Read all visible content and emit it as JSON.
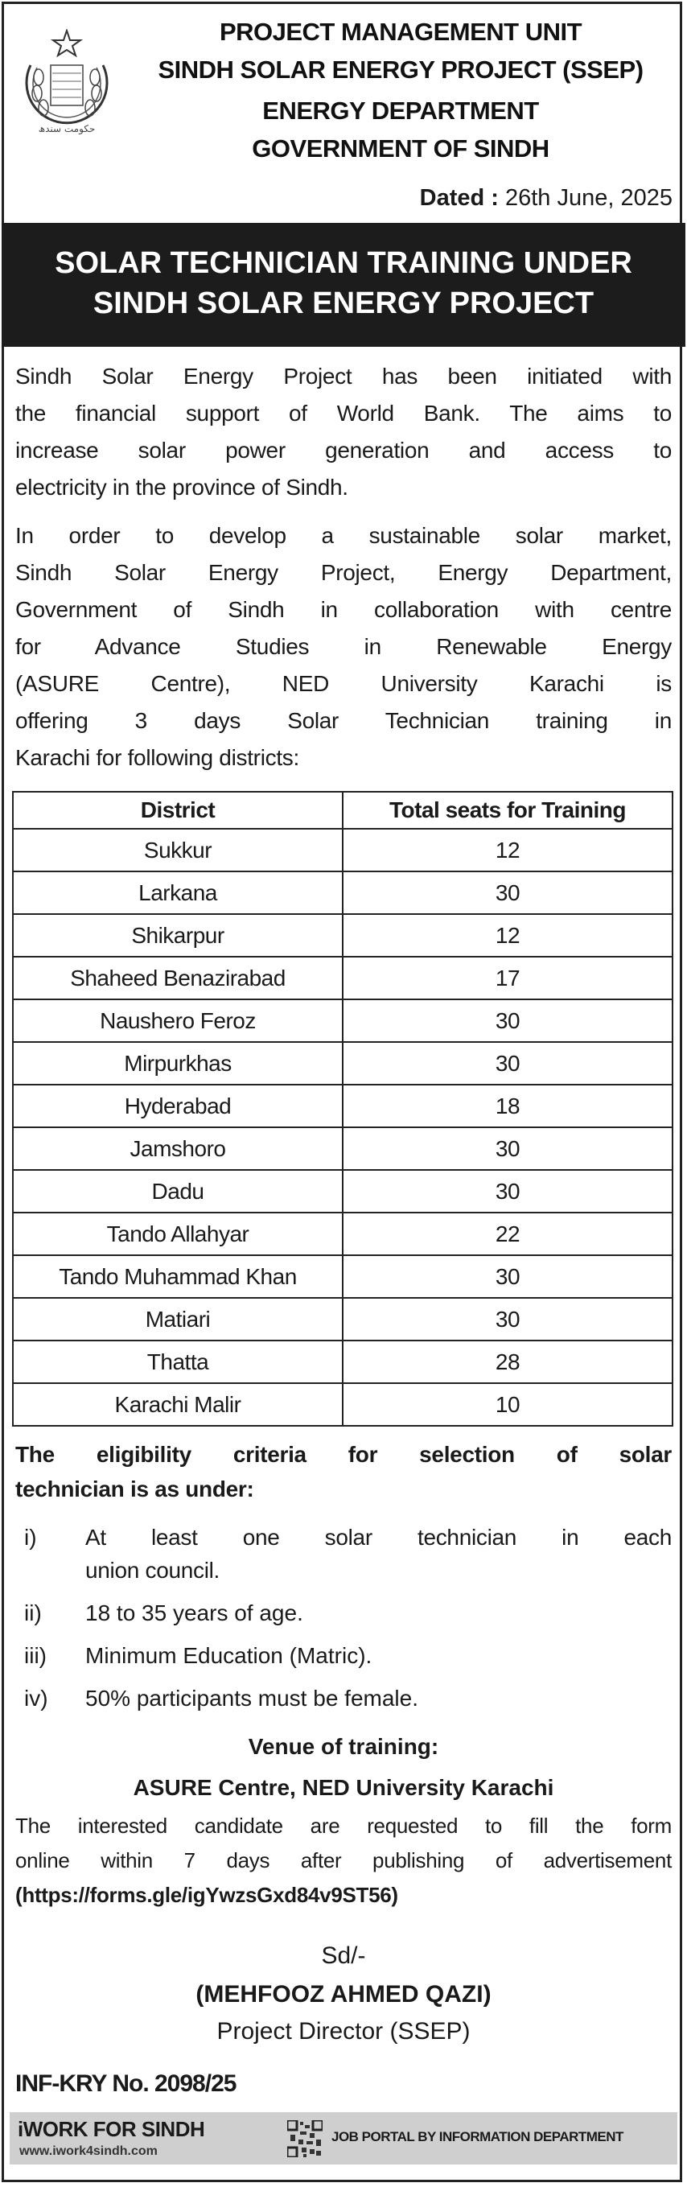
{
  "header": {
    "seal_text": "حکومت سندھ",
    "lines": [
      "PROJECT MANAGEMENT UNIT",
      "SINDH SOLAR ENERGY PROJECT (SSEP)",
      "ENERGY DEPARTMENT",
      "GOVERNMENT OF SINDH"
    ],
    "dated_label": "Dated :",
    "dated_value": "26th June, 2025"
  },
  "banner": {
    "lines": [
      "SOLAR TECHNICIAN TRAINING UNDER",
      "SINDH SOLAR ENERGY PROJECT"
    ]
  },
  "intro": {
    "para1": [
      "Sindh Solar Energy Project has been initiated with",
      "the financial support of World Bank. The aims to",
      "increase solar power generation and access to",
      "electricity in the province of Sindh."
    ],
    "para2": [
      "In order to develop a sustainable solar market,",
      "Sindh Solar Energy Project, Energy Department,",
      "Government of Sindh in collaboration with centre",
      "for Advance Studies in Renewable Energy",
      "(ASURE Centre), NED University Karachi is",
      "offering 3 days Solar Technician training in",
      "Karachi for following districts:"
    ]
  },
  "table": {
    "headers": [
      "District",
      "Total seats for Training"
    ],
    "rows": [
      [
        "Sukkur",
        "12"
      ],
      [
        "Larkana",
        "30"
      ],
      [
        "Shikarpur",
        "12"
      ],
      [
        "Shaheed Benazirabad",
        "17"
      ],
      [
        "Naushero Feroz",
        "30"
      ],
      [
        "Mirpurkhas",
        "30"
      ],
      [
        "Hyderabad",
        "18"
      ],
      [
        "Jamshoro",
        "30"
      ],
      [
        "Dadu",
        "30"
      ],
      [
        "Tando Allahyar",
        "22"
      ],
      [
        "Tando Muhammad Khan",
        "30"
      ],
      [
        "Matiari",
        "30"
      ],
      [
        "Thatta",
        "28"
      ],
      [
        "Karachi Malir",
        "10"
      ]
    ]
  },
  "eligibility": {
    "heading": [
      "The eligibility criteria for selection of solar",
      "technician is as under:"
    ],
    "items": [
      {
        "num": "i)",
        "lines": [
          "At least one solar technician in each",
          "union council."
        ]
      },
      {
        "num": "ii)",
        "lines": [
          "18 to 35 years of age."
        ]
      },
      {
        "num": "iii)",
        "lines": [
          "Minimum Education (Matric)."
        ]
      },
      {
        "num": "iv)",
        "lines": [
          "50% participants must be female."
        ]
      }
    ]
  },
  "venue": {
    "heading": "Venue of training:",
    "value": "ASURE Centre, NED University Karachi"
  },
  "instructions": {
    "lines": [
      "The interested candidate are requested to fill the form",
      "online within 7 days after publishing of advertisement"
    ],
    "url": "(https://forms.gle/igYwzsGxd84v9ST56)"
  },
  "signature": {
    "sd": "Sd/-",
    "name": "(MEHFOOZ AHMED QAZI)",
    "title": "Project Director (SSEP)"
  },
  "ref_no": "INF-KRY No. 2098/25",
  "footer": {
    "logo": "iWORK FOR SINDH",
    "website": "www.iwork4sindh.com",
    "tagline": "JOB PORTAL BY INFORMATION DEPARTMENT"
  }
}
